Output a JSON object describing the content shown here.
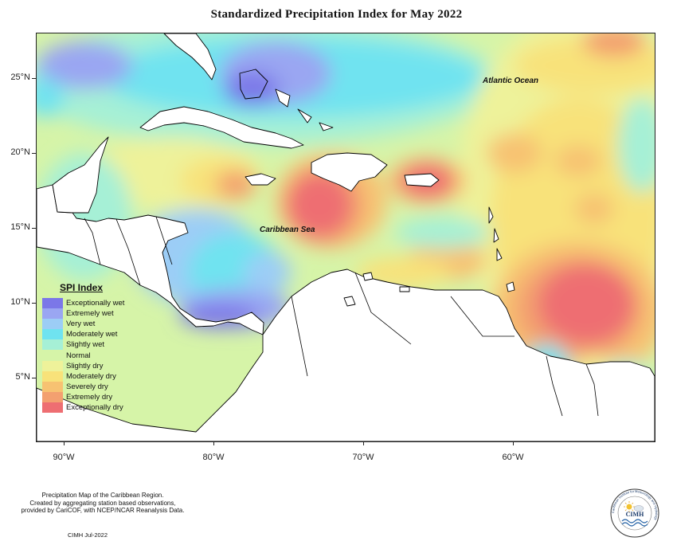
{
  "title": "Standardized Precipitation Index for May 2022",
  "map": {
    "labels": {
      "atlantic": "Atlantic Ocean",
      "caribbean": "Caribbean Sea"
    },
    "lat_ticks": [
      "25°N",
      "20°N",
      "15°N",
      "10°N",
      "5°N"
    ],
    "lon_ticks": [
      "90°W",
      "80°W",
      "70°W",
      "60°W"
    ]
  },
  "legend": {
    "title": "SPI Index",
    "items": [
      {
        "label": "Exceptionally wet",
        "color": "#7b77e8"
      },
      {
        "label": "Extremely wet",
        "color": "#9aa6f2"
      },
      {
        "label": "Very wet",
        "color": "#9ccdf6"
      },
      {
        "label": "Moderately wet",
        "color": "#6fe3f0"
      },
      {
        "label": "Slightly wet",
        "color": "#a6f0d6"
      },
      {
        "label": "Normal",
        "color": "#d6f4a8"
      },
      {
        "label": "Slightly dry",
        "color": "#eef29a"
      },
      {
        "label": "Moderately dry",
        "color": "#f8e27a"
      },
      {
        "label": "Severely dry",
        "color": "#f7c272"
      },
      {
        "label": "Extremely dry",
        "color": "#f3a070"
      },
      {
        "label": "Exceptionally dry",
        "color": "#ee6e72"
      }
    ]
  },
  "footnote": {
    "lines": [
      "Precipitation Map of the Caribbean Region.",
      "Created by aggregating station based observations,",
      "provided by CariCOF, with NCEP/NCAR Reanalysis Data."
    ],
    "credit": "CIMH Jul-2022"
  },
  "logo": {
    "text": "CIMH",
    "ring_text": "Caribbean Institute for Meteorology and Hydrology"
  }
}
